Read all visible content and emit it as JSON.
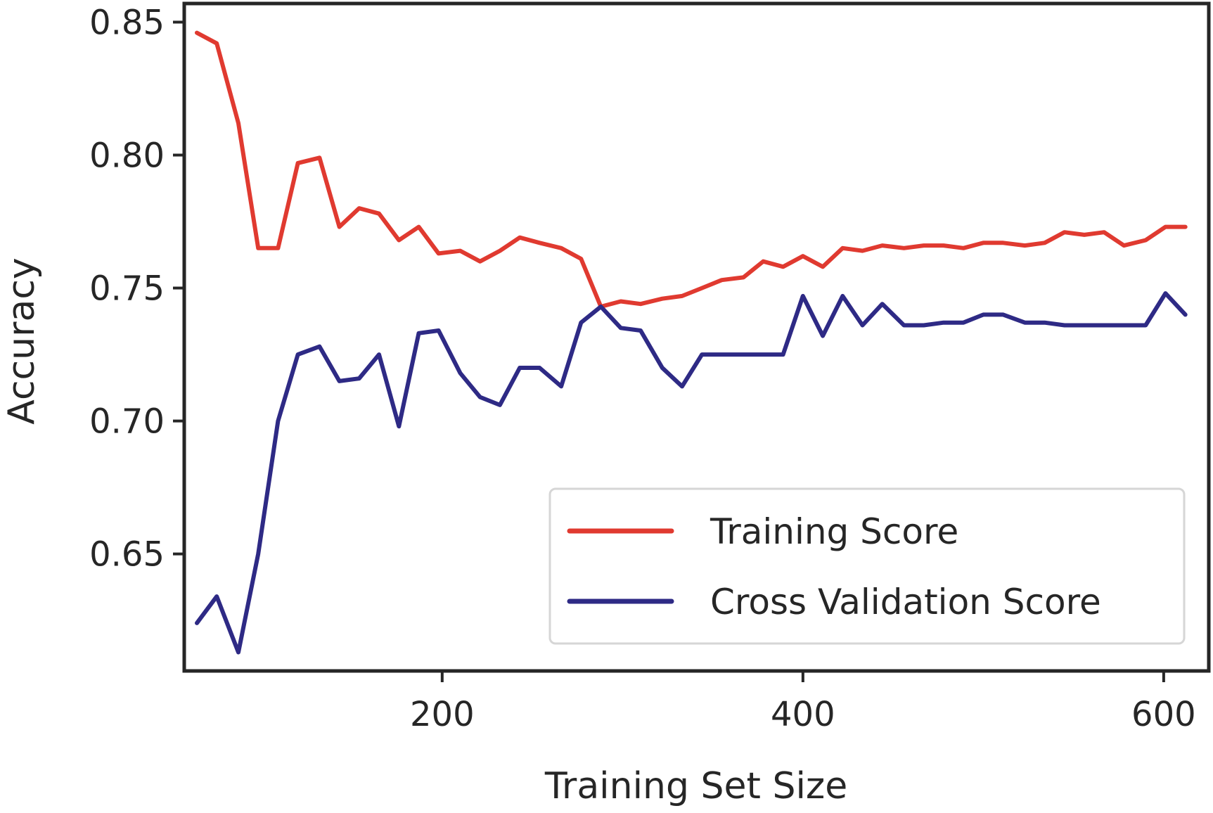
{
  "chart_data": {
    "type": "line",
    "xlabel": "Training Set Size",
    "ylabel": "Accuracy",
    "xlim": [
      57,
      625
    ],
    "ylim": [
      0.606,
      0.857
    ],
    "xticks": [
      200,
      400,
      600
    ],
    "xtick_labels": [
      "200",
      "400",
      "600"
    ],
    "yticks": [
      0.65,
      0.7,
      0.75,
      0.8,
      0.85
    ],
    "ytick_labels": [
      "0.65",
      "0.70",
      "0.75",
      "0.80",
      "0.85"
    ],
    "grid": false,
    "legend_position": "lower-right",
    "x": [
      64,
      75,
      87,
      98,
      109,
      120,
      132,
      143,
      154,
      165,
      176,
      187,
      198,
      210,
      221,
      232,
      243,
      254,
      266,
      277,
      288,
      299,
      310,
      322,
      333,
      344,
      355,
      367,
      378,
      389,
      400,
      411,
      422,
      433,
      444,
      456,
      467,
      478,
      489,
      500,
      511,
      523,
      534,
      545,
      556,
      567,
      578,
      590,
      601,
      612
    ],
    "series": [
      {
        "name": "Training Score",
        "color": "#e03a30",
        "values": [
          0.846,
          0.842,
          0.812,
          0.765,
          0.765,
          0.797,
          0.799,
          0.773,
          0.78,
          0.778,
          0.768,
          0.773,
          0.763,
          0.764,
          0.76,
          0.764,
          0.769,
          0.767,
          0.765,
          0.761,
          0.743,
          0.745,
          0.744,
          0.746,
          0.747,
          0.75,
          0.753,
          0.754,
          0.76,
          0.758,
          0.762,
          0.758,
          0.765,
          0.764,
          0.766,
          0.765,
          0.766,
          0.766,
          0.765,
          0.767,
          0.767,
          0.766,
          0.767,
          0.771,
          0.77,
          0.771,
          0.766,
          0.768,
          0.773,
          0.773
        ]
      },
      {
        "name": "Cross Validation Score",
        "color": "#2e2a85",
        "values": [
          0.624,
          0.634,
          0.613,
          0.65,
          0.7,
          0.725,
          0.728,
          0.715,
          0.716,
          0.725,
          0.698,
          0.733,
          0.734,
          0.718,
          0.709,
          0.706,
          0.72,
          0.72,
          0.713,
          0.737,
          0.743,
          0.735,
          0.734,
          0.72,
          0.713,
          0.725,
          0.725,
          0.725,
          0.725,
          0.725,
          0.747,
          0.732,
          0.747,
          0.736,
          0.744,
          0.736,
          0.736,
          0.737,
          0.737,
          0.74,
          0.74,
          0.737,
          0.737,
          0.736,
          0.736,
          0.736,
          0.736,
          0.736,
          0.748,
          0.74
        ]
      }
    ]
  }
}
